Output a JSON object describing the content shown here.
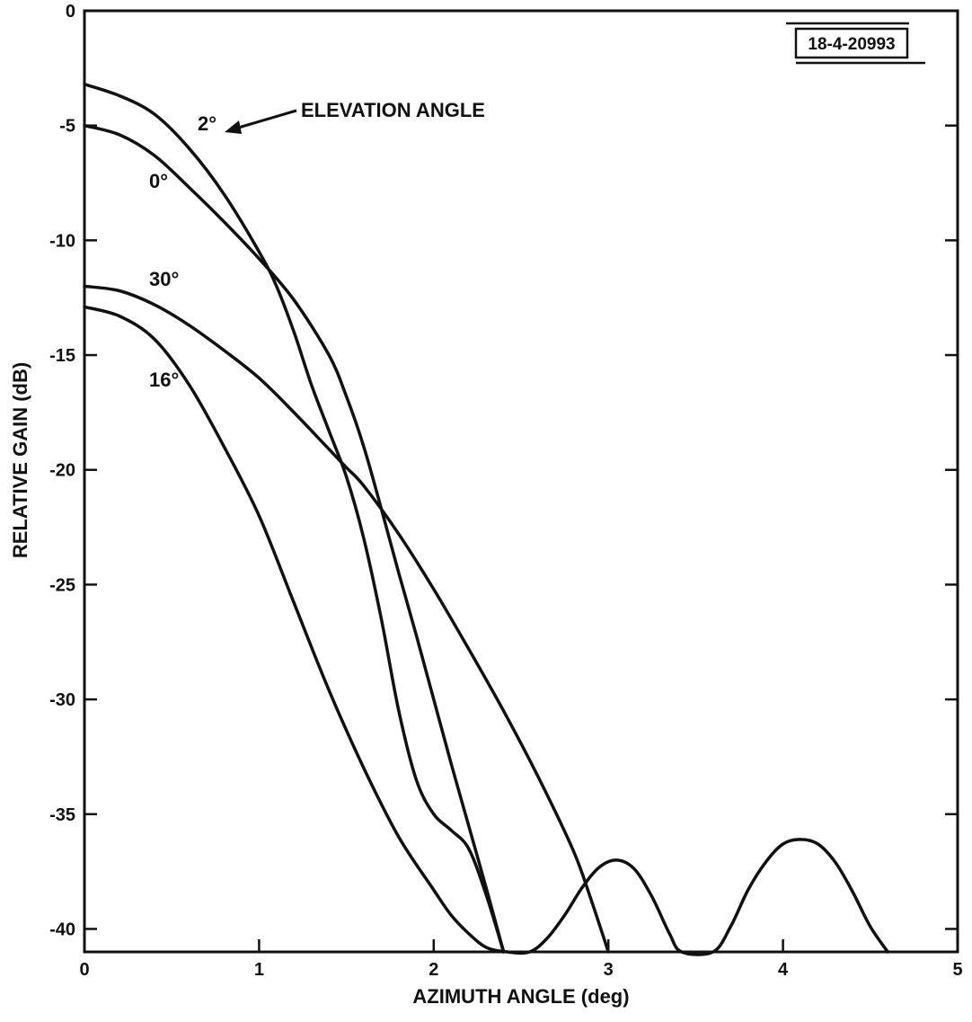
{
  "chart_data": {
    "type": "line",
    "xlabel": "AZIMUTH ANGLE (deg)",
    "ylabel": "RELATIVE GAIN (dB)",
    "xlim": [
      0,
      5
    ],
    "ylim": [
      -41,
      0
    ],
    "xticks": [
      0,
      1,
      2,
      3,
      4,
      5
    ],
    "yticks": [
      0,
      -5,
      -10,
      -15,
      -20,
      -25,
      -30,
      -35,
      -40
    ],
    "grid": false,
    "reference_id": "18-4-20993",
    "annotation": "ELEVATION ANGLE",
    "series": [
      {
        "name": "2°",
        "x": [
          0,
          0.2,
          0.4,
          0.6,
          0.8,
          1.0,
          1.1,
          1.2,
          1.3,
          1.4,
          1.5,
          1.6,
          1.7,
          1.8,
          1.9,
          2.0,
          2.1,
          2.2,
          2.3,
          2.4
        ],
        "y": [
          -3.2,
          -3.7,
          -4.5,
          -6.0,
          -8.0,
          -10.5,
          -12.0,
          -14.0,
          -16.3,
          -18.3,
          -20.3,
          -23.0,
          -26.5,
          -30.5,
          -33.5,
          -35.0,
          -35.7,
          -36.5,
          -38.5,
          -41.0
        ]
      },
      {
        "name": "0°",
        "x": [
          0,
          0.2,
          0.4,
          0.6,
          0.8,
          1.0,
          1.2,
          1.4,
          1.5,
          1.6,
          1.7,
          1.8,
          1.9,
          2.0,
          2.1,
          2.2,
          2.3,
          2.4
        ],
        "y": [
          -5.0,
          -5.4,
          -6.3,
          -7.7,
          -9.2,
          -10.8,
          -12.6,
          -15.0,
          -16.8,
          -19.0,
          -21.7,
          -24.5,
          -27.2,
          -30.0,
          -32.8,
          -35.5,
          -38.2,
          -41.0
        ]
      },
      {
        "name": "30°",
        "x": [
          0,
          0.2,
          0.4,
          0.6,
          0.8,
          1.0,
          1.2,
          1.4,
          1.5,
          1.6,
          1.8,
          2.0,
          2.2,
          2.4,
          2.6,
          2.8,
          2.9,
          3.0
        ],
        "y": [
          -12.0,
          -12.2,
          -12.8,
          -13.7,
          -14.8,
          -16.0,
          -17.5,
          -19.1,
          -19.9,
          -20.7,
          -22.8,
          -25.2,
          -27.8,
          -30.5,
          -33.4,
          -36.6,
          -38.7,
          -41.0
        ]
      },
      {
        "name": "16°",
        "x": [
          0,
          0.2,
          0.4,
          0.6,
          0.8,
          1.0,
          1.2,
          1.4,
          1.6,
          1.8,
          2.0,
          2.1,
          2.2,
          2.3,
          2.42,
          2.55,
          2.65,
          2.75,
          2.85,
          2.95,
          3.05,
          3.15,
          3.25,
          3.35,
          3.42,
          3.6,
          3.7,
          3.8,
          3.9,
          4.0,
          4.1,
          4.2,
          4.3,
          4.4,
          4.5,
          4.6
        ],
        "y": [
          -12.9,
          -13.3,
          -14.3,
          -16.3,
          -19.0,
          -22.0,
          -25.8,
          -29.6,
          -33.0,
          -36.0,
          -38.3,
          -39.4,
          -40.2,
          -40.8,
          -41.0,
          -41.0,
          -40.4,
          -39.4,
          -38.2,
          -37.3,
          -37.0,
          -37.4,
          -38.6,
          -40.2,
          -41.0,
          -41.0,
          -39.9,
          -38.3,
          -37.1,
          -36.3,
          -36.1,
          -36.3,
          -37.1,
          -38.4,
          -39.9,
          -41.0
        ]
      }
    ]
  }
}
